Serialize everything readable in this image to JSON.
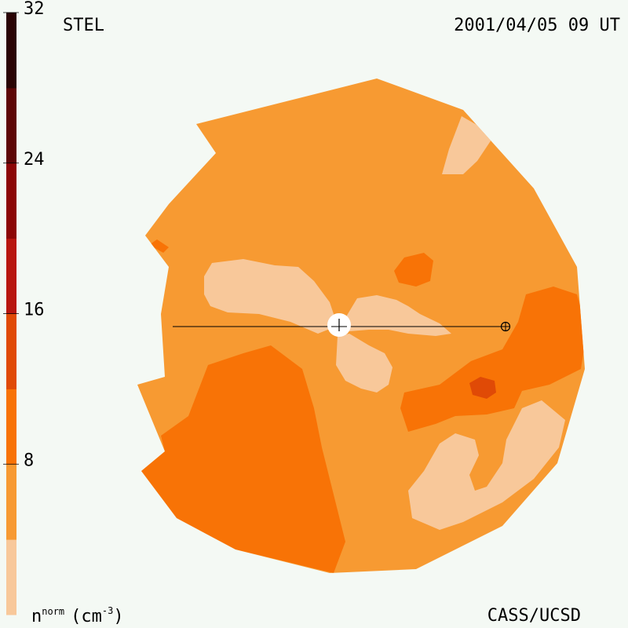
{
  "header": {
    "instrument": "STEL",
    "timestamp": "2001/04/05 09 UT"
  },
  "footer": {
    "credit": "CASS/UCSD",
    "units_base": "n",
    "units_sup": "norm",
    "units_unit": "(cm",
    "units_exp": "-3",
    "units_close": ")"
  },
  "colorbar": {
    "tick_labels": [
      "8",
      "16",
      "24",
      "32"
    ],
    "colors": [
      "#f8c89a",
      "#f79a32",
      "#f87306",
      "#e04a06",
      "#b81610",
      "#8c0606",
      "#5e0606",
      "#2a0404"
    ]
  },
  "map": {
    "type": "density-map",
    "background_color": "#f79a32",
    "level_colors": {
      "low": "#f8c89a",
      "base": "#f79a32",
      "medium": "#f87306",
      "high": "#e04a06"
    },
    "markers": [
      "sun-marker",
      "earth-marker"
    ]
  }
}
